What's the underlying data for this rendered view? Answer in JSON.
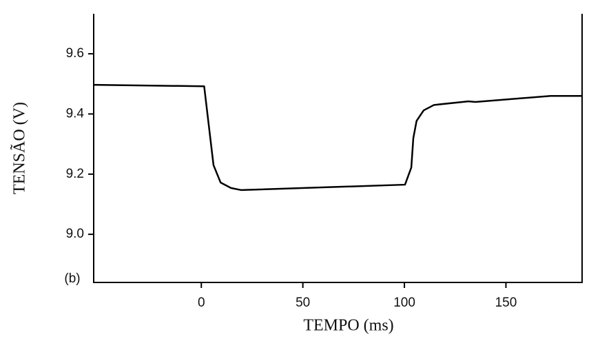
{
  "chart_data": {
    "type": "line",
    "x_label": "TEMPO (ms)",
    "y_label": "TENSÃO (V)",
    "annotation": "(b)",
    "x": [
      -53,
      1.4,
      6,
      9.5,
      14.6,
      19.7,
      100.3,
      103.4,
      104.4,
      106,
      109.5,
      114.6,
      131.5,
      135,
      172,
      187.5
    ],
    "series": [
      {
        "color": "#000000",
        "values": [
          9.497,
          9.492,
          9.23,
          9.172,
          9.154,
          9.147,
          9.165,
          9.222,
          9.32,
          9.377,
          9.412,
          9.43,
          9.442,
          9.44,
          9.46,
          9.46
        ]
      }
    ],
    "xlim": [
      -53,
      187.5
    ],
    "xticks": [
      0,
      50,
      100,
      150
    ],
    "ylim": [
      8.84,
      9.733
    ],
    "yticks": [
      {
        "value": 9.0,
        "label": "9.0"
      },
      9.2,
      9.4,
      9.6
    ],
    "grid": false
  }
}
